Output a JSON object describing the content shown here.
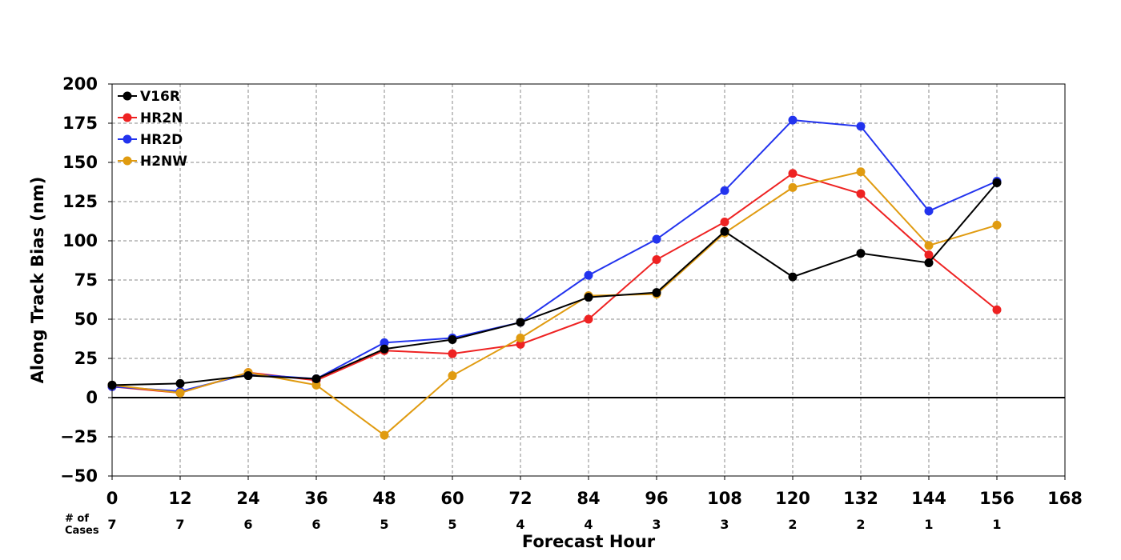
{
  "chart_data": {
    "type": "line",
    "title": "",
    "xlabel": "Forecast Hour",
    "ylabel": "Along Track Bias (nm)",
    "xlim": [
      0,
      168
    ],
    "ylim": [
      -50,
      200
    ],
    "x_ticks": [
      "0",
      "12",
      "24",
      "36",
      "48",
      "60",
      "72",
      "84",
      "96",
      "108",
      "120",
      "132",
      "144",
      "156",
      "168"
    ],
    "y_ticks": [
      "200",
      "175",
      "150",
      "125",
      "100",
      "75",
      "50",
      "25",
      "0",
      "−25",
      "−50"
    ],
    "y_tick_values": [
      200,
      175,
      150,
      125,
      100,
      75,
      50,
      25,
      0,
      -25,
      -50
    ],
    "x": [
      0,
      12,
      24,
      36,
      48,
      60,
      72,
      84,
      96,
      108,
      120,
      132,
      144,
      156
    ],
    "grid": true,
    "legend_position": "top-left",
    "cases_label": "# of\nCases",
    "cases": [
      "7",
      "7",
      "6",
      "6",
      "5",
      "5",
      "4",
      "4",
      "3",
      "3",
      "2",
      "2",
      "1",
      "1"
    ],
    "series": [
      {
        "name": "V16R",
        "color": "#000000",
        "values": [
          8,
          9,
          14,
          12,
          31,
          37,
          48,
          64,
          67,
          106,
          77,
          92,
          86,
          137
        ]
      },
      {
        "name": "HR2N",
        "color": "#ee2222",
        "values": [
          7,
          3,
          16,
          11,
          30,
          28,
          34,
          50,
          88,
          112,
          143,
          130,
          91,
          56
        ]
      },
      {
        "name": "HR2D",
        "color": "#2233ee",
        "values": [
          7,
          4,
          15,
          12,
          35,
          38,
          48,
          78,
          101,
          132,
          177,
          173,
          119,
          138
        ]
      },
      {
        "name": "H2NW",
        "color": "#e09b10",
        "values": [
          8,
          3,
          16,
          8,
          -24,
          14,
          38,
          65,
          66,
          105,
          134,
          144,
          97,
          110
        ]
      }
    ]
  }
}
